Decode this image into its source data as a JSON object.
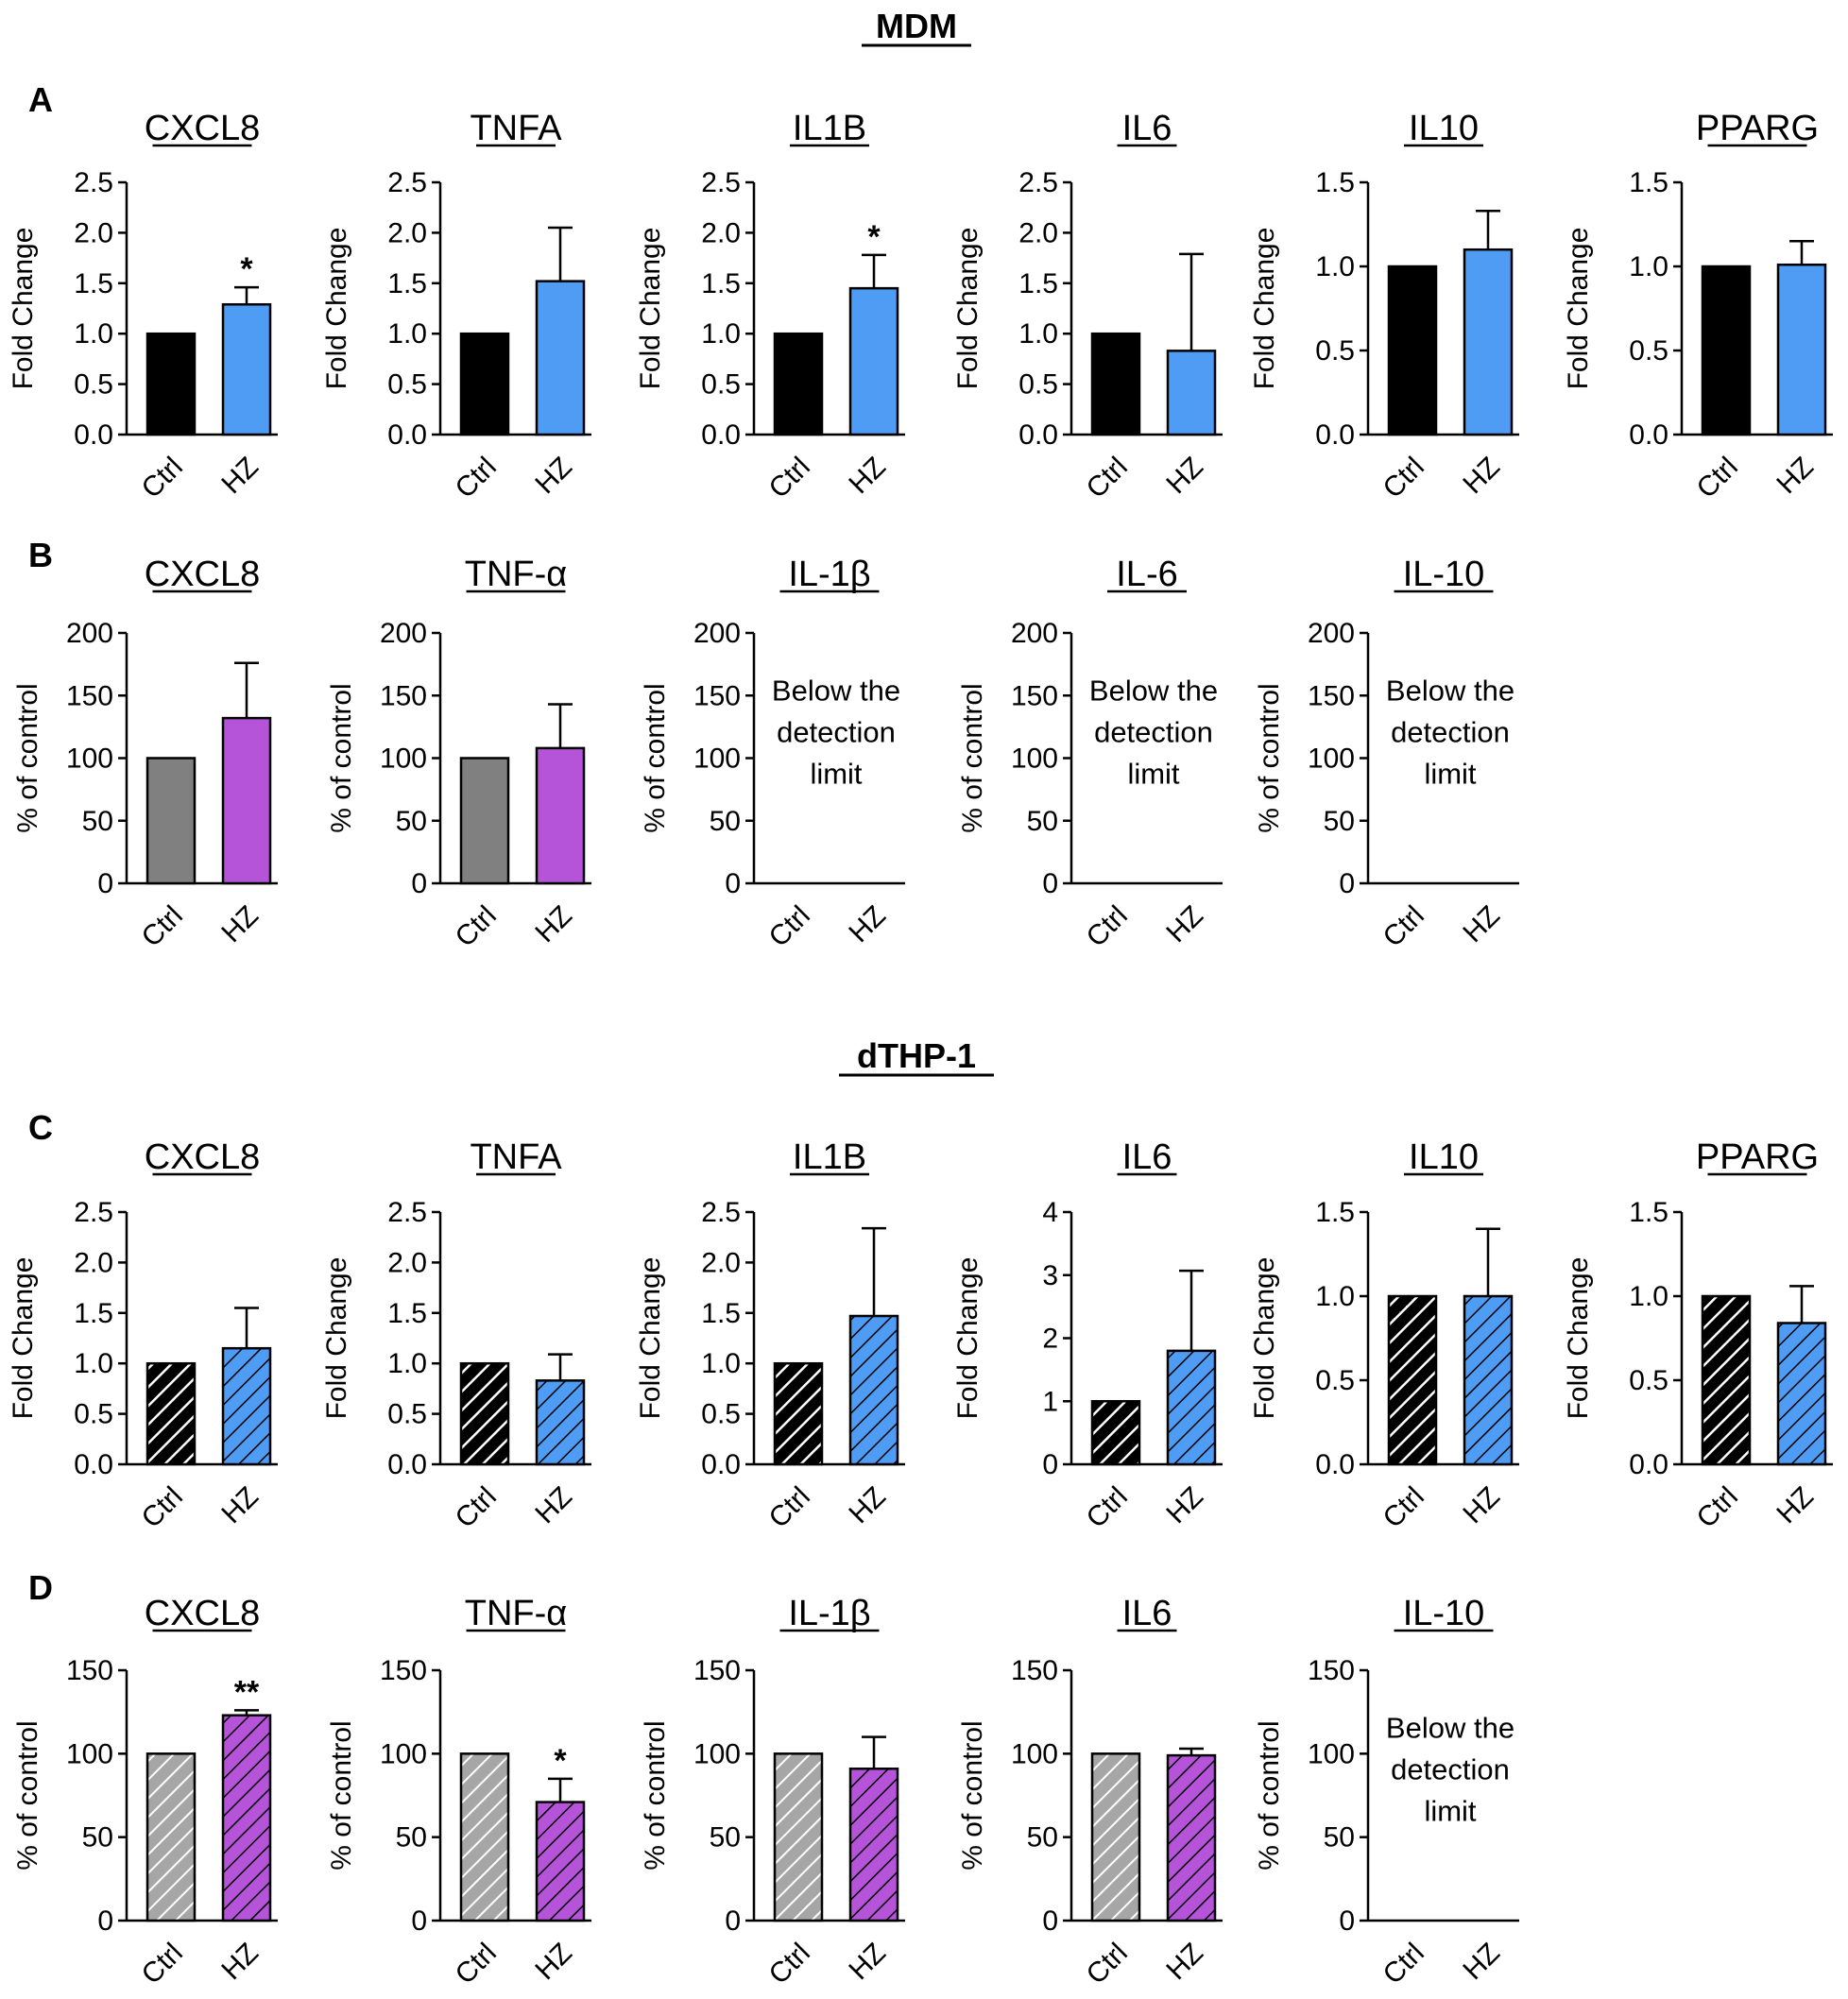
{
  "figure": {
    "sections": [
      {
        "id": "mdm",
        "title": "MDM"
      },
      {
        "id": "dthp1",
        "title": "dTHP-1"
      }
    ],
    "panel_labels": [
      "A",
      "B",
      "C",
      "D"
    ]
  },
  "colors": {
    "black": "#000000",
    "gray": "#808080",
    "lightgray": "#a6a6a6",
    "blue": "#4f9cf5",
    "purple": "#b554d9"
  },
  "chart_data": [
    {
      "panel": "A",
      "type": "bar",
      "title": "CXCL8",
      "ylabel": "Fold Change",
      "ylim": [
        0,
        2.5
      ],
      "yticks": [
        "0.0",
        "0.5",
        "1.0",
        "1.5",
        "2.0",
        "2.5"
      ],
      "categories": [
        "Ctrl",
        "HZ"
      ],
      "values": [
        1.0,
        1.29
      ],
      "errors": [
        0,
        0.17
      ],
      "significance": [
        null,
        "*"
      ],
      "pattern": "solid",
      "colors": [
        "black",
        "blue"
      ]
    },
    {
      "panel": "A",
      "type": "bar",
      "title": "TNFA",
      "ylabel": "Fold Change",
      "ylim": [
        0,
        2.5
      ],
      "yticks": [
        "0.0",
        "0.5",
        "1.0",
        "1.5",
        "2.0",
        "2.5"
      ],
      "categories": [
        "Ctrl",
        "HZ"
      ],
      "values": [
        1.0,
        1.52
      ],
      "errors": [
        0,
        0.53
      ],
      "significance": [
        null,
        null
      ],
      "pattern": "solid",
      "colors": [
        "black",
        "blue"
      ]
    },
    {
      "panel": "A",
      "type": "bar",
      "title": "IL1B",
      "ylabel": "Fold Change",
      "ylim": [
        0,
        2.5
      ],
      "yticks": [
        "0.0",
        "0.5",
        "1.0",
        "1.5",
        "2.0",
        "2.5"
      ],
      "categories": [
        "Ctrl",
        "HZ"
      ],
      "values": [
        1.0,
        1.45
      ],
      "errors": [
        0,
        0.33
      ],
      "significance": [
        null,
        "*"
      ],
      "pattern": "solid",
      "colors": [
        "black",
        "blue"
      ]
    },
    {
      "panel": "A",
      "type": "bar",
      "title": "IL6",
      "ylabel": "Fold Change",
      "ylim": [
        0,
        2.5
      ],
      "yticks": [
        "0.0",
        "0.5",
        "1.0",
        "1.5",
        "2.0",
        "2.5"
      ],
      "categories": [
        "Ctrl",
        "HZ"
      ],
      "values": [
        1.0,
        0.83
      ],
      "errors": [
        0,
        0.96
      ],
      "significance": [
        null,
        null
      ],
      "pattern": "solid",
      "colors": [
        "black",
        "blue"
      ]
    },
    {
      "panel": "A",
      "type": "bar",
      "title": "IL10",
      "ylabel": "Fold Change",
      "ylim": [
        0,
        1.5
      ],
      "yticks": [
        "0.0",
        "0.5",
        "1.0",
        "1.5"
      ],
      "categories": [
        "Ctrl",
        "HZ"
      ],
      "values": [
        1.0,
        1.1
      ],
      "errors": [
        0,
        0.23
      ],
      "significance": [
        null,
        null
      ],
      "pattern": "solid",
      "colors": [
        "black",
        "blue"
      ]
    },
    {
      "panel": "A",
      "type": "bar",
      "title": "PPARG",
      "ylabel": "Fold Change",
      "ylim": [
        0,
        1.5
      ],
      "yticks": [
        "0.0",
        "0.5",
        "1.0",
        "1.5"
      ],
      "categories": [
        "Ctrl",
        "HZ"
      ],
      "values": [
        1.0,
        1.01
      ],
      "errors": [
        0,
        0.14
      ],
      "significance": [
        null,
        null
      ],
      "pattern": "solid",
      "colors": [
        "black",
        "blue"
      ]
    },
    {
      "panel": "B",
      "type": "bar",
      "title": "CXCL8",
      "ylabel": "% of control",
      "ylim": [
        0,
        200
      ],
      "yticks": [
        "0",
        "50",
        "100",
        "150",
        "200"
      ],
      "categories": [
        "Ctrl",
        "HZ"
      ],
      "values": [
        100,
        132
      ],
      "errors": [
        0,
        44
      ],
      "significance": [
        null,
        null
      ],
      "pattern": "solid",
      "colors": [
        "gray",
        "purple"
      ]
    },
    {
      "panel": "B",
      "type": "bar",
      "title": "TNF-α",
      "ylabel": "% of control",
      "ylim": [
        0,
        200
      ],
      "yticks": [
        "0",
        "50",
        "100",
        "150",
        "200"
      ],
      "categories": [
        "Ctrl",
        "HZ"
      ],
      "values": [
        100,
        108
      ],
      "errors": [
        0,
        35
      ],
      "significance": [
        null,
        null
      ],
      "pattern": "solid",
      "colors": [
        "gray",
        "purple"
      ]
    },
    {
      "panel": "B",
      "type": "bar",
      "title": "IL-1β",
      "ylabel": "% of control",
      "ylim": [
        0,
        200
      ],
      "yticks": [
        "0",
        "50",
        "100",
        "150",
        "200"
      ],
      "categories": [
        "Ctrl",
        "HZ"
      ],
      "values": null,
      "note": [
        "Below the",
        "detection",
        "limit"
      ]
    },
    {
      "panel": "B",
      "type": "bar",
      "title": "IL-6",
      "ylabel": "% of control",
      "ylim": [
        0,
        200
      ],
      "yticks": [
        "0",
        "50",
        "100",
        "150",
        "200"
      ],
      "categories": [
        "Ctrl",
        "HZ"
      ],
      "values": null,
      "note": [
        "Below the",
        "detection",
        "limit"
      ]
    },
    {
      "panel": "B",
      "type": "bar",
      "title": "IL-10",
      "ylabel": "% of control",
      "ylim": [
        0,
        200
      ],
      "yticks": [
        "0",
        "50",
        "100",
        "150",
        "200"
      ],
      "categories": [
        "Ctrl",
        "HZ"
      ],
      "values": null,
      "note": [
        "Below the",
        "detection",
        "limit"
      ]
    },
    {
      "panel": "C",
      "type": "bar",
      "title": "CXCL8",
      "ylabel": "Fold Change",
      "ylim": [
        0,
        2.5
      ],
      "yticks": [
        "0.0",
        "0.5",
        "1.0",
        "1.5",
        "2.0",
        "2.5"
      ],
      "categories": [
        "Ctrl",
        "HZ"
      ],
      "values": [
        1.0,
        1.15
      ],
      "errors": [
        0,
        0.4
      ],
      "significance": [
        null,
        null
      ],
      "pattern": "hatched",
      "colors": [
        "black",
        "blue"
      ]
    },
    {
      "panel": "C",
      "type": "bar",
      "title": "TNFA",
      "ylabel": "Fold Change",
      "ylim": [
        0,
        2.5
      ],
      "yticks": [
        "0.0",
        "0.5",
        "1.0",
        "1.5",
        "2.0",
        "2.5"
      ],
      "categories": [
        "Ctrl",
        "HZ"
      ],
      "values": [
        1.0,
        0.83
      ],
      "errors": [
        0,
        0.26
      ],
      "significance": [
        null,
        null
      ],
      "pattern": "hatched",
      "colors": [
        "black",
        "blue"
      ]
    },
    {
      "panel": "C",
      "type": "bar",
      "title": "IL1B",
      "ylabel": "Fold Change",
      "ylim": [
        0,
        2.5
      ],
      "yticks": [
        "0.0",
        "0.5",
        "1.0",
        "1.5",
        "2.0",
        "2.5"
      ],
      "categories": [
        "Ctrl",
        "HZ"
      ],
      "values": [
        1.0,
        1.47
      ],
      "errors": [
        0,
        0.87
      ],
      "significance": [
        null,
        null
      ],
      "pattern": "hatched",
      "colors": [
        "black",
        "blue"
      ]
    },
    {
      "panel": "C",
      "type": "bar",
      "title": "IL6",
      "ylabel": "Fold Change",
      "ylim": [
        0,
        4
      ],
      "yticks": [
        "0",
        "1",
        "2",
        "3",
        "4"
      ],
      "categories": [
        "Ctrl",
        "HZ"
      ],
      "values": [
        1.0,
        1.8
      ],
      "errors": [
        0,
        1.27
      ],
      "significance": [
        null,
        null
      ],
      "pattern": "hatched",
      "colors": [
        "black",
        "blue"
      ]
    },
    {
      "panel": "C",
      "type": "bar",
      "title": "IL10",
      "ylabel": "Fold Change",
      "ylim": [
        0,
        1.5
      ],
      "yticks": [
        "0.0",
        "0.5",
        "1.0",
        "1.5"
      ],
      "categories": [
        "Ctrl",
        "HZ"
      ],
      "values": [
        1.0,
        1.0
      ],
      "errors": [
        0,
        0.4
      ],
      "significance": [
        null,
        null
      ],
      "pattern": "hatched",
      "colors": [
        "black",
        "blue"
      ]
    },
    {
      "panel": "C",
      "type": "bar",
      "title": "PPARG",
      "ylabel": "Fold Change",
      "ylim": [
        0,
        1.5
      ],
      "yticks": [
        "0.0",
        "0.5",
        "1.0",
        "1.5"
      ],
      "categories": [
        "Ctrl",
        "HZ"
      ],
      "values": [
        1.0,
        0.84
      ],
      "errors": [
        0,
        0.22
      ],
      "significance": [
        null,
        null
      ],
      "pattern": "hatched",
      "colors": [
        "black",
        "blue"
      ]
    },
    {
      "panel": "D",
      "type": "bar",
      "title": "CXCL8",
      "ylabel": "% of control",
      "ylim": [
        0,
        150
      ],
      "yticks": [
        "0",
        "50",
        "100",
        "150"
      ],
      "categories": [
        "Ctrl",
        "HZ"
      ],
      "values": [
        100,
        123
      ],
      "errors": [
        0,
        3
      ],
      "significance": [
        null,
        "**"
      ],
      "pattern": "hatched",
      "colors": [
        "lightgray",
        "purple"
      ]
    },
    {
      "panel": "D",
      "type": "bar",
      "title": "TNF-α",
      "ylabel": "% of control",
      "ylim": [
        0,
        150
      ],
      "yticks": [
        "0",
        "50",
        "100",
        "150"
      ],
      "categories": [
        "Ctrl",
        "HZ"
      ],
      "values": [
        100,
        71
      ],
      "errors": [
        0,
        14
      ],
      "significance": [
        null,
        "*"
      ],
      "pattern": "hatched",
      "colors": [
        "lightgray",
        "purple"
      ]
    },
    {
      "panel": "D",
      "type": "bar",
      "title": "IL-1β",
      "ylabel": "% of control",
      "ylim": [
        0,
        150
      ],
      "yticks": [
        "0",
        "50",
        "100",
        "150"
      ],
      "categories": [
        "Ctrl",
        "HZ"
      ],
      "values": [
        100,
        91
      ],
      "errors": [
        0,
        19
      ],
      "significance": [
        null,
        null
      ],
      "pattern": "hatched",
      "colors": [
        "lightgray",
        "purple"
      ]
    },
    {
      "panel": "D",
      "type": "bar",
      "title": "IL6",
      "ylabel": "% of control",
      "ylim": [
        0,
        150
      ],
      "yticks": [
        "0",
        "50",
        "100",
        "150"
      ],
      "categories": [
        "Ctrl",
        "HZ"
      ],
      "values": [
        100,
        99
      ],
      "errors": [
        0,
        4
      ],
      "significance": [
        null,
        null
      ],
      "pattern": "hatched",
      "colors": [
        "lightgray",
        "purple"
      ]
    },
    {
      "panel": "D",
      "type": "bar",
      "title": "IL-10",
      "ylabel": "% of control",
      "ylim": [
        0,
        150
      ],
      "yticks": [
        "0",
        "50",
        "100",
        "150"
      ],
      "categories": [
        "Ctrl",
        "HZ"
      ],
      "values": null,
      "note": [
        "Below the",
        "detection",
        "limit"
      ]
    }
  ]
}
